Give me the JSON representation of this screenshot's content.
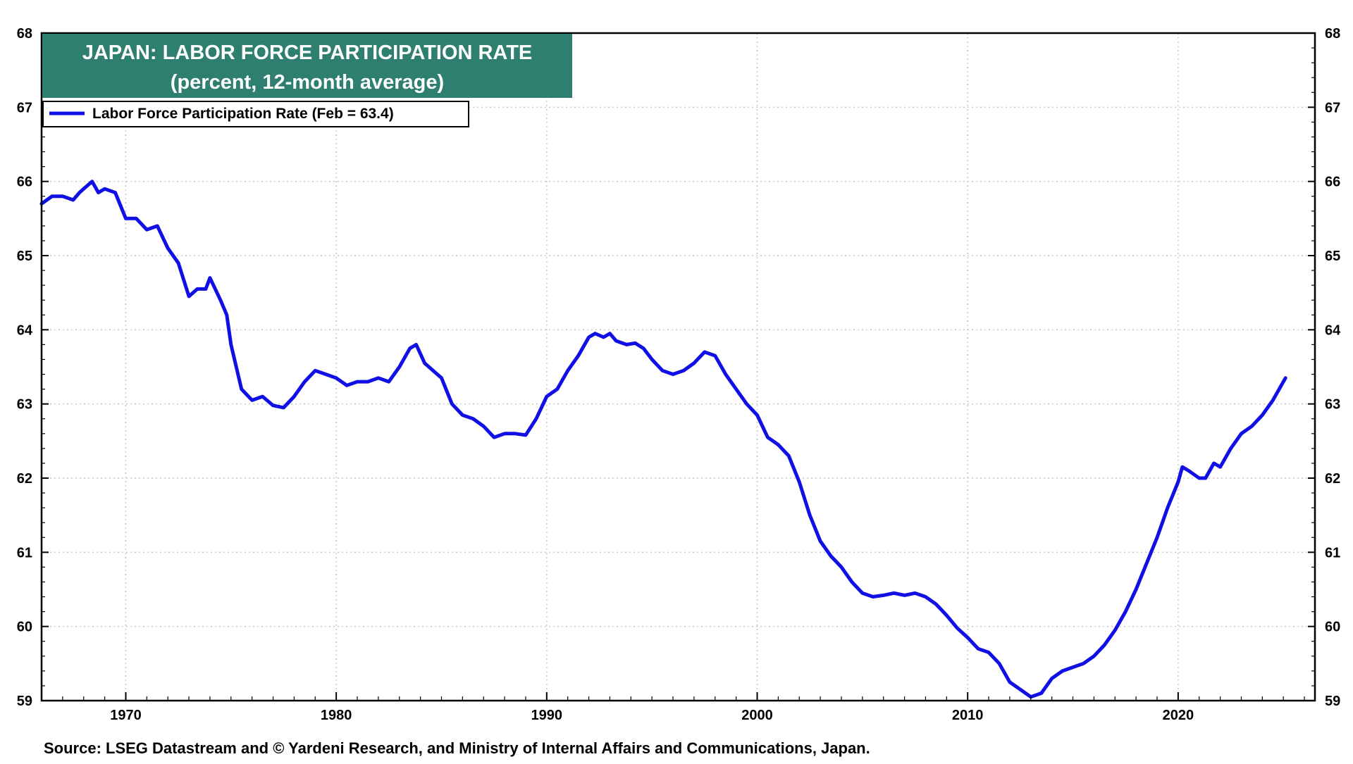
{
  "chart_data": {
    "type": "line",
    "title": "JAPAN: LABOR FORCE PARTICIPATION RATE",
    "subtitle": "(percent, 12-month average)",
    "xlabel": "",
    "ylabel": "",
    "xlim": [
      1966.0,
      2026.5
    ],
    "ylim": [
      59,
      68
    ],
    "y_ticks": [
      59,
      60,
      61,
      62,
      63,
      64,
      65,
      66,
      67,
      68
    ],
    "y_tick_labels": [
      "59",
      "60",
      "61",
      "62",
      "63",
      "64",
      "65",
      "66",
      "67",
      "68"
    ],
    "x_ticks": [
      1970,
      1980,
      1990,
      2000,
      2010,
      2020
    ],
    "x_tick_labels": [
      "1970",
      "1980",
      "1990",
      "2000",
      "2010",
      "2020"
    ],
    "grid": true,
    "legend_position": "top-left",
    "series": [
      {
        "name": "Labor Force Participation Rate (Feb = 63.4)",
        "color": "#1010e6",
        "x": [
          1966.0,
          1966.5,
          1967.0,
          1967.5,
          1967.8,
          1968.0,
          1968.4,
          1968.7,
          1969.0,
          1969.5,
          1970.0,
          1970.5,
          1971.0,
          1971.5,
          1972.0,
          1972.5,
          1973.0,
          1973.4,
          1973.8,
          1974.0,
          1974.5,
          1974.8,
          1975.0,
          1975.5,
          1976.0,
          1976.5,
          1977.0,
          1977.5,
          1978.0,
          1978.5,
          1979.0,
          1979.5,
          1980.0,
          1980.5,
          1981.0,
          1981.5,
          1982.0,
          1982.5,
          1983.0,
          1983.5,
          1983.8,
          1984.2,
          1984.6,
          1985.0,
          1985.5,
          1986.0,
          1986.5,
          1987.0,
          1987.5,
          1988.0,
          1988.5,
          1989.0,
          1989.5,
          1990.0,
          1990.5,
          1991.0,
          1991.5,
          1992.0,
          1992.3,
          1992.7,
          1993.0,
          1993.3,
          1993.8,
          1994.2,
          1994.6,
          1995.0,
          1995.5,
          1996.0,
          1996.5,
          1997.0,
          1997.5,
          1998.0,
          1998.5,
          1999.0,
          1999.5,
          2000.0,
          2000.5,
          2001.0,
          2001.5,
          2002.0,
          2002.5,
          2003.0,
          2003.5,
          2004.0,
          2004.5,
          2005.0,
          2005.5,
          2006.0,
          2006.5,
          2007.0,
          2007.5,
          2008.0,
          2008.5,
          2009.0,
          2009.5,
          2010.0,
          2010.5,
          2011.0,
          2011.5,
          2012.0,
          2012.5,
          2013.0,
          2013.5,
          2014.0,
          2014.5,
          2015.0,
          2015.5,
          2016.0,
          2016.5,
          2017.0,
          2017.5,
          2018.0,
          2018.5,
          2019.0,
          2019.5,
          2020.0,
          2020.2,
          2020.5,
          2021.0,
          2021.3,
          2021.7,
          2022.0,
          2022.5,
          2023.0,
          2023.5,
          2024.0,
          2024.5,
          2025.1
        ],
        "values": [
          65.7,
          65.8,
          65.8,
          65.75,
          65.85,
          65.9,
          66.0,
          65.85,
          65.9,
          65.85,
          65.5,
          65.5,
          65.35,
          65.4,
          65.1,
          64.9,
          64.45,
          64.55,
          64.55,
          64.7,
          64.4,
          64.2,
          63.8,
          63.2,
          63.05,
          63.1,
          62.98,
          62.95,
          63.1,
          63.3,
          63.45,
          63.4,
          63.35,
          63.25,
          63.3,
          63.3,
          63.35,
          63.3,
          63.5,
          63.75,
          63.8,
          63.55,
          63.45,
          63.35,
          63.0,
          62.85,
          62.8,
          62.7,
          62.55,
          62.6,
          62.6,
          62.58,
          62.8,
          63.1,
          63.2,
          63.45,
          63.65,
          63.9,
          63.95,
          63.9,
          63.95,
          63.85,
          63.8,
          63.82,
          63.75,
          63.6,
          63.45,
          63.4,
          63.45,
          63.55,
          63.7,
          63.65,
          63.4,
          63.2,
          63.0,
          62.85,
          62.55,
          62.45,
          62.3,
          61.95,
          61.5,
          61.15,
          60.95,
          60.8,
          60.6,
          60.45,
          60.4,
          60.42,
          60.45,
          60.42,
          60.45,
          60.4,
          60.3,
          60.15,
          59.98,
          59.85,
          59.7,
          59.65,
          59.5,
          59.25,
          59.15,
          59.05,
          59.1,
          59.3,
          59.4,
          59.45,
          59.5,
          59.6,
          59.75,
          59.95,
          60.2,
          60.5,
          60.85,
          61.2,
          61.6,
          61.95,
          62.15,
          62.1,
          62.0,
          62.0,
          62.2,
          62.15,
          62.4,
          62.6,
          62.7,
          62.85,
          63.05,
          63.35
        ]
      }
    ],
    "source": "Source: LSEG Datastream and © Yardeni Research, and Ministry of Internal Affairs and Communications, Japan."
  }
}
